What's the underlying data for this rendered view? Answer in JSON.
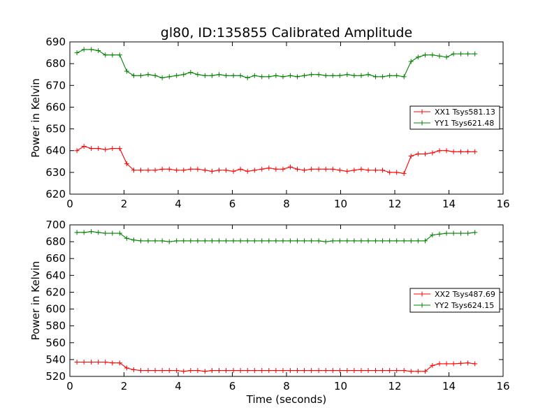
{
  "figure": {
    "title": "gl80, ID:135855 Calibrated Amplitude"
  },
  "chart_data": [
    {
      "type": "line",
      "title": "gl80, ID:135855 Calibrated Amplitude",
      "xlabel": "",
      "ylabel": "Power in Kelvin",
      "xlim": [
        0,
        16
      ],
      "ylim": [
        620,
        690
      ],
      "xticks": [
        "0",
        "2",
        "4",
        "6",
        "8",
        "10",
        "12",
        "14",
        "16"
      ],
      "yticks": [
        "620",
        "630",
        "640",
        "650",
        "660",
        "670",
        "680",
        "690"
      ],
      "grid": false,
      "legend_position": "center-right",
      "x": [
        0.26,
        0.52,
        0.79,
        1.05,
        1.31,
        1.57,
        1.84,
        2.1,
        2.36,
        2.62,
        2.89,
        3.15,
        3.41,
        3.67,
        3.94,
        4.2,
        4.46,
        4.72,
        4.99,
        5.25,
        5.51,
        5.77,
        6.04,
        6.3,
        6.56,
        6.82,
        7.09,
        7.35,
        7.61,
        7.87,
        8.14,
        8.4,
        8.66,
        8.92,
        9.19,
        9.45,
        9.71,
        9.97,
        10.24,
        10.5,
        10.76,
        11.02,
        11.29,
        11.55,
        11.81,
        12.07,
        12.34,
        12.6,
        12.86,
        13.12,
        13.39,
        13.65,
        13.91,
        14.17,
        14.44,
        14.7,
        14.96
      ],
      "series": [
        {
          "name": "XX1 Tsys581.13",
          "color": "#ff0000",
          "values": [
            640,
            642,
            641,
            641,
            640.5,
            641,
            641,
            634,
            631,
            631,
            631,
            631,
            631.5,
            631.5,
            631,
            631,
            631.5,
            631.5,
            631,
            630.5,
            631,
            631,
            630.5,
            631.5,
            630.5,
            631,
            631.5,
            632,
            631.5,
            631.5,
            632.5,
            631.5,
            631,
            631.5,
            631.5,
            631.5,
            631.5,
            631,
            630.5,
            631,
            631.5,
            631,
            631,
            631,
            630,
            630,
            629.5,
            637.5,
            638.5,
            638.5,
            639,
            640,
            640,
            639.5,
            639.5,
            639.5,
            639.5
          ]
        },
        {
          "name": "YY1 Tsys621.48",
          "color": "#008000",
          "values": [
            685,
            686.5,
            686.5,
            686,
            684,
            684,
            684,
            676.5,
            674.5,
            674.5,
            675,
            674.5,
            673.5,
            674,
            674.5,
            675,
            676,
            675,
            674.5,
            674.5,
            675,
            674.5,
            674.5,
            674.5,
            673.5,
            674.5,
            674,
            674,
            674.5,
            674,
            674.5,
            674,
            674.5,
            675,
            675,
            674.5,
            674.5,
            674.5,
            675,
            674.5,
            674.5,
            675,
            674,
            674,
            674.5,
            674.5,
            674,
            681,
            683,
            684,
            684,
            683.5,
            683,
            684.5,
            684.5,
            684.5,
            684.5
          ]
        }
      ]
    },
    {
      "type": "line",
      "xlabel": "Time (seconds)",
      "ylabel": "Power in Kelvin",
      "xlim": [
        0,
        16
      ],
      "ylim": [
        520,
        700
      ],
      "xticks": [
        "0",
        "2",
        "4",
        "6",
        "8",
        "10",
        "12",
        "14",
        "16"
      ],
      "yticks": [
        "520",
        "540",
        "560",
        "580",
        "600",
        "620",
        "640",
        "660",
        "680",
        "700"
      ],
      "grid": false,
      "legend_position": "center-right",
      "x": [
        0.26,
        0.52,
        0.79,
        1.05,
        1.31,
        1.57,
        1.84,
        2.1,
        2.36,
        2.62,
        2.89,
        3.15,
        3.41,
        3.67,
        3.94,
        4.2,
        4.46,
        4.72,
        4.99,
        5.25,
        5.51,
        5.77,
        6.04,
        6.3,
        6.56,
        6.82,
        7.09,
        7.35,
        7.61,
        7.87,
        8.14,
        8.4,
        8.66,
        8.92,
        9.19,
        9.45,
        9.71,
        9.97,
        10.24,
        10.5,
        10.76,
        11.02,
        11.29,
        11.55,
        11.81,
        12.07,
        12.34,
        12.6,
        12.86,
        13.12,
        13.39,
        13.65,
        13.91,
        14.17,
        14.44,
        14.7,
        14.96
      ],
      "series": [
        {
          "name": "XX2 Tsys487.69",
          "color": "#ff0000",
          "values": [
            537,
            537,
            537,
            537,
            537,
            536,
            536,
            530,
            528,
            527,
            527,
            527,
            527,
            527,
            527,
            526,
            527,
            527,
            526,
            527,
            527,
            527,
            527,
            527,
            527,
            527,
            527,
            527,
            527,
            527,
            527,
            527,
            527,
            527,
            527,
            527,
            527,
            527,
            527,
            527,
            527,
            527,
            527,
            527,
            527,
            527,
            527,
            526,
            526,
            526,
            533,
            535,
            535,
            535,
            535.5,
            536,
            535
          ]
        },
        {
          "name": "YY2 Tsys624.15",
          "color": "#008000",
          "values": [
            691,
            691,
            692,
            691,
            690,
            690,
            690,
            684,
            682,
            681,
            681,
            681,
            681,
            680,
            681,
            681,
            681,
            681,
            681,
            681,
            681,
            681,
            681,
            681,
            681,
            681,
            681,
            681,
            681,
            681,
            681,
            681,
            681,
            681,
            681,
            680,
            681,
            681,
            681,
            681,
            681,
            681,
            681,
            681,
            681,
            681,
            681,
            681,
            681,
            681,
            688,
            689,
            690,
            690,
            690,
            690,
            691
          ]
        }
      ]
    }
  ]
}
